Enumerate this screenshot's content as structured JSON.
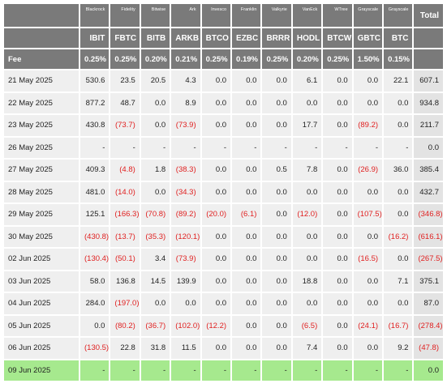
{
  "header": {
    "issuers": [
      "",
      "Blackrock",
      "Fidelity",
      "Bitwise",
      "Ark",
      "Invesco",
      "Franklin",
      "Valkyrie",
      "VanEck",
      "WTree",
      "Grayscale",
      "Grayscale"
    ],
    "total_label": "Total",
    "tickers": [
      "",
      "IBIT",
      "FBTC",
      "BITB",
      "ARKB",
      "BTCO",
      "EZBC",
      "BRRR",
      "HODL",
      "BTCW",
      "GBTC",
      "BTC"
    ],
    "fee_label": "Fee",
    "fees": [
      "0.25%",
      "0.25%",
      "0.20%",
      "0.21%",
      "0.25%",
      "0.19%",
      "0.25%",
      "0.20%",
      "0.25%",
      "1.50%",
      "0.15%"
    ]
  },
  "rows": [
    {
      "date": "21 May 2025",
      "values": [
        "530.6",
        "23.5",
        "20.5",
        "4.3",
        "0.0",
        "0.0",
        "0.0",
        "6.1",
        "0.0",
        "0.0",
        "22.1"
      ],
      "total": "607.1"
    },
    {
      "date": "22 May 2025",
      "values": [
        "877.2",
        "48.7",
        "0.0",
        "8.9",
        "0.0",
        "0.0",
        "0.0",
        "0.0",
        "0.0",
        "0.0",
        "0.0"
      ],
      "total": "934.8"
    },
    {
      "date": "23 May 2025",
      "values": [
        "430.8",
        "(73.7)",
        "0.0",
        "(73.9)",
        "0.0",
        "0.0",
        "0.0",
        "17.7",
        "0.0",
        "(89.2)",
        "0.0"
      ],
      "total": "211.7"
    },
    {
      "date": "26 May 2025",
      "values": [
        "-",
        "-",
        "-",
        "-",
        "-",
        "-",
        "-",
        "-",
        "-",
        "-",
        "-"
      ],
      "total": "0.0"
    },
    {
      "date": "27 May 2025",
      "values": [
        "409.3",
        "(4.8)",
        "1.8",
        "(38.3)",
        "0.0",
        "0.0",
        "0.5",
        "7.8",
        "0.0",
        "(26.9)",
        "36.0"
      ],
      "total": "385.4"
    },
    {
      "date": "28 May 2025",
      "values": [
        "481.0",
        "(14.0)",
        "0.0",
        "(34.3)",
        "0.0",
        "0.0",
        "0.0",
        "0.0",
        "0.0",
        "0.0",
        "0.0"
      ],
      "total": "432.7"
    },
    {
      "date": "29 May 2025",
      "values": [
        "125.1",
        "(166.3)",
        "(70.8)",
        "(89.2)",
        "(20.0)",
        "(6.1)",
        "0.0",
        "(12.0)",
        "0.0",
        "(107.5)",
        "0.0"
      ],
      "total": "(346.8)"
    },
    {
      "date": "30 May 2025",
      "values": [
        "(430.8)",
        "(13.7)",
        "(35.3)",
        "(120.1)",
        "0.0",
        "0.0",
        "0.0",
        "0.0",
        "0.0",
        "0.0",
        "(16.2)"
      ],
      "total": "(616.1)"
    },
    {
      "date": "02 Jun 2025",
      "values": [
        "(130.4)",
        "(50.1)",
        "3.4",
        "(73.9)",
        "0.0",
        "0.0",
        "0.0",
        "0.0",
        "0.0",
        "(16.5)",
        "0.0"
      ],
      "total": "(267.5)"
    },
    {
      "date": "03 Jun 2025",
      "values": [
        "58.0",
        "136.8",
        "14.5",
        "139.9",
        "0.0",
        "0.0",
        "0.0",
        "18.8",
        "0.0",
        "0.0",
        "7.1"
      ],
      "total": "375.1"
    },
    {
      "date": "04 Jun 2025",
      "values": [
        "284.0",
        "(197.0)",
        "0.0",
        "0.0",
        "0.0",
        "0.0",
        "0.0",
        "0.0",
        "0.0",
        "0.0",
        "0.0"
      ],
      "total": "87.0"
    },
    {
      "date": "05 Jun 2025",
      "values": [
        "0.0",
        "(80.2)",
        "(36.7)",
        "(102.0)",
        "(12.2)",
        "0.0",
        "0.0",
        "(6.5)",
        "0.0",
        "(24.1)",
        "(16.7)"
      ],
      "total": "(278.4)"
    },
    {
      "date": "06 Jun 2025",
      "values": [
        "(130.5)",
        "22.8",
        "31.8",
        "11.5",
        "0.0",
        "0.0",
        "0.0",
        "7.4",
        "0.0",
        "0.0",
        "9.2"
      ],
      "total": "(47.8)"
    },
    {
      "date": "09 Jun 2025",
      "values": [
        "-",
        "-",
        "-",
        "-",
        "-",
        "-",
        "-",
        "-",
        "-",
        "-",
        "-"
      ],
      "total": "0.0",
      "highlight": true
    }
  ],
  "colors": {
    "header_bg": "#7a7a7a",
    "cell_bg": "#efefef",
    "total_bg": "#e3e3e3",
    "negative": "#e02020",
    "highlight_bg": "#a6e98e"
  }
}
